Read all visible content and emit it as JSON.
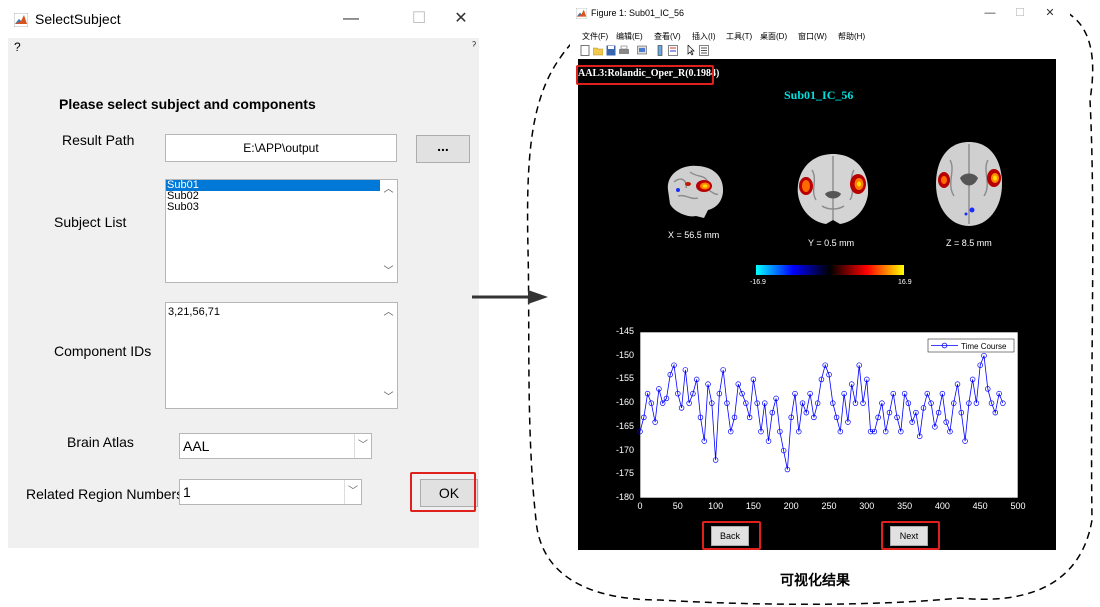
{
  "dialog": {
    "title": "SelectSubject",
    "help_label": "?",
    "heading": "Please select subject and components",
    "result_path": {
      "label": "Result Path",
      "value": "E:\\APP\\output",
      "browse_label": "..."
    },
    "subject_list": {
      "label": "Subject List",
      "items": [
        "Sub01",
        "Sub02",
        "Sub03"
      ],
      "selected": "Sub01"
    },
    "component_ids": {
      "label": "Component IDs",
      "value": "3,21,56,71"
    },
    "brain_atlas": {
      "label": "Brain Atlas",
      "value": "AAL"
    },
    "related_regions": {
      "label": "Related Region Numbers",
      "value": "1"
    },
    "ok_label": "OK"
  },
  "figure": {
    "title": "Figure 1: Sub01_IC_56",
    "menu": [
      "文件(F)",
      "编辑(E)",
      "查看(V)",
      "插入(I)",
      "工具(T)",
      "桌面(D)",
      "窗口(W)",
      "帮助(H)"
    ],
    "atlas_label": "AAL3:Rolandic_Oper_R(0.1984)",
    "plot_title": "Sub01_IC_56",
    "slices": [
      {
        "coord": "X = 56.5 mm"
      },
      {
        "coord": "Y = 0.5 mm"
      },
      {
        "coord": "Z = 8.5 mm"
      }
    ],
    "colorbar": {
      "min": "-16.9",
      "max": "16.9"
    },
    "back_label": "Back",
    "next_label": "Next"
  },
  "chart_data": {
    "type": "line",
    "series": [
      {
        "name": "Time Course",
        "color": "#0000ff",
        "marker": "circle"
      }
    ],
    "x_range": [
      0,
      500
    ],
    "y_range": [
      -180,
      -145
    ],
    "x_ticks": [
      "0",
      "50",
      "100",
      "150",
      "200",
      "250",
      "300",
      "350",
      "400",
      "450",
      "500"
    ],
    "y_ticks": [
      "-145",
      "-150",
      "-155",
      "-160",
      "-165",
      "-170",
      "-175",
      "-180"
    ],
    "legend_position": "top-right",
    "background": "#ffffff",
    "x": [
      0,
      5,
      10,
      15,
      20,
      25,
      30,
      35,
      40,
      45,
      50,
      55,
      60,
      65,
      70,
      75,
      80,
      85,
      90,
      95,
      100,
      105,
      110,
      115,
      120,
      125,
      130,
      135,
      140,
      145,
      150,
      155,
      160,
      165,
      170,
      175,
      180,
      185,
      190,
      195,
      200,
      205,
      210,
      215,
      220,
      225,
      230,
      235,
      240,
      245,
      250,
      255,
      260,
      265,
      270,
      275,
      280,
      285,
      290,
      295,
      300,
      305,
      310,
      315,
      320,
      325,
      330,
      335,
      340,
      345,
      350,
      355,
      360,
      365,
      370,
      375,
      380,
      385,
      390,
      395,
      400,
      405,
      410,
      415,
      420,
      425,
      430,
      435,
      440,
      445,
      450,
      455,
      460,
      465,
      470,
      475,
      480
    ],
    "y": [
      -166,
      -163,
      -158,
      -160,
      -164,
      -157,
      -160,
      -159,
      -154,
      -152,
      -158,
      -161,
      -153,
      -160,
      -158,
      -155,
      -163,
      -168,
      -156,
      -160,
      -172,
      -158,
      -153,
      -160,
      -166,
      -163,
      -156,
      -158,
      -160,
      -163,
      -155,
      -160,
      -166,
      -160,
      -168,
      -162,
      -159,
      -166,
      -170,
      -174,
      -163,
      -158,
      -166,
      -160,
      -162,
      -158,
      -163,
      -160,
      -155,
      -152,
      -154,
      -160,
      -163,
      -166,
      -158,
      -164,
      -156,
      -160,
      -152,
      -160,
      -155,
      -166,
      -166,
      -163,
      -160,
      -166,
      -162,
      -158,
      -163,
      -166,
      -158,
      -160,
      -164,
      -162,
      -167,
      -161,
      -158,
      -160,
      -165,
      -162,
      -158,
      -164,
      -166,
      -160,
      -156,
      -162,
      -168,
      -160,
      -155,
      -160,
      -152,
      -150,
      -157,
      -160,
      -162,
      -158,
      -160
    ]
  }
}
